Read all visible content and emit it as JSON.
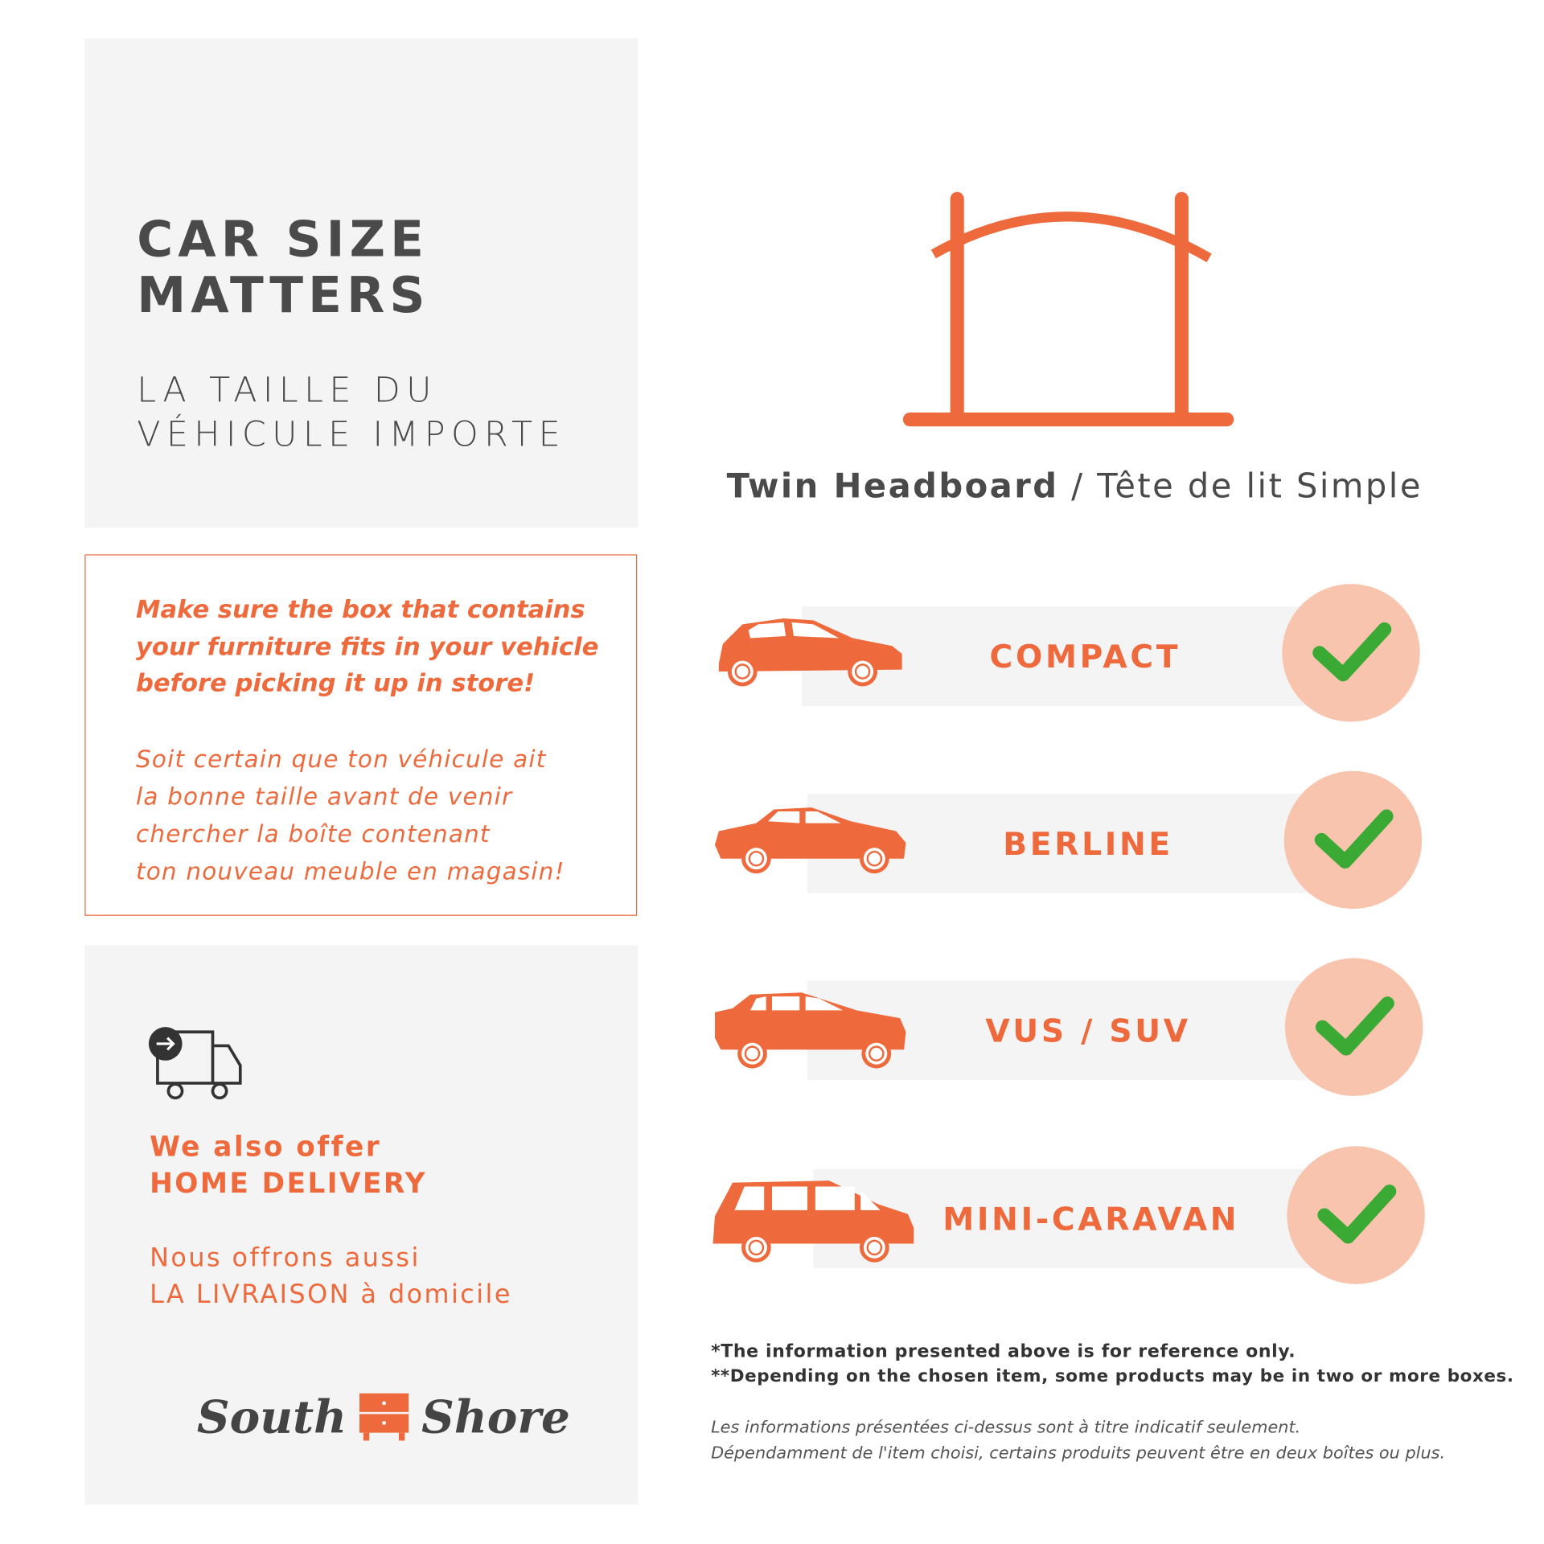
{
  "colors": {
    "accent": "#ee6a3c",
    "panel": "#f4f4f4",
    "text": "#4a4a4a",
    "check_bg": "#f8c4ae",
    "check": "#3aaa35"
  },
  "header": {
    "title_line1": "CAR SIZE",
    "title_line2": "MATTERS",
    "subtitle_line1": "LA TAILLE DU",
    "subtitle_line2": "VÉHICULE IMPORTE"
  },
  "notice": {
    "en_lines": [
      "Make sure the box that contains",
      "your furniture fits in your vehicle",
      "before picking it up in store!"
    ],
    "fr_lines": [
      "Soit certain que ton véhicule ait",
      "la bonne taille avant de venir",
      "chercher la boîte contenant",
      "ton nouveau meuble en magasin!"
    ]
  },
  "delivery": {
    "icon": "delivery-truck-icon",
    "en_line1": "We also offer",
    "en_line2": "HOME DELIVERY",
    "fr_line1": "Nous offrons aussi",
    "fr_line2": "LA LIVRAISON à domicile"
  },
  "logo": {
    "left": "South",
    "right": "Shore"
  },
  "product": {
    "name_en": "Twin Headboard",
    "separator": " / ",
    "name_fr": "Tête de lit Simple",
    "icon": "headboard-icon"
  },
  "vehicles": [
    {
      "label": "COMPACT",
      "icon": "hatchback-car-icon",
      "fits": true
    },
    {
      "label": "BERLINE",
      "icon": "sedan-car-icon",
      "fits": true
    },
    {
      "label": "VUS / SUV",
      "icon": "suv-car-icon",
      "fits": true
    },
    {
      "label": "MINI-CARAVAN",
      "icon": "minivan-icon",
      "fits": true
    }
  ],
  "footnotes": {
    "en1": "*The information presented above is for reference only.",
    "en2": "**Depending on the chosen item, some products may be in two or more boxes.",
    "fr1": "Les informations présentées ci-dessus sont à titre indicatif seulement.",
    "fr2": "Dépendamment de l'item choisi, certains produits peuvent être en deux boîtes ou plus."
  }
}
